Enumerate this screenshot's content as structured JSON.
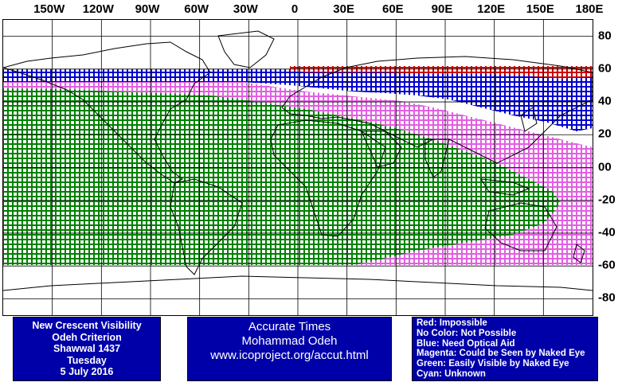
{
  "map": {
    "longitude_labels": [
      "150W",
      "120W",
      "90W",
      "60W",
      "30W",
      "0",
      "30E",
      "60E",
      "90E",
      "120E",
      "150E",
      "180E"
    ],
    "longitude_values": [
      -150,
      -120,
      -90,
      -60,
      -30,
      0,
      30,
      60,
      90,
      120,
      150,
      180
    ],
    "latitude_labels": [
      "80",
      "60",
      "40",
      "20",
      "00",
      "-20",
      "-40",
      "-60",
      "-80"
    ],
    "latitude_values": [
      80,
      60,
      40,
      20,
      0,
      -20,
      -40,
      -60,
      -80
    ],
    "lon_range": [
      -180,
      180
    ],
    "lat_range": [
      -90,
      90
    ],
    "grid": true,
    "zone_colors": {
      "impossible": "#cc0000",
      "need_optical_aid": "#0000cc",
      "naked_eye_possible": "#e060e0",
      "easily_visible": "#008000",
      "coastline": "#000000"
    },
    "visibility_zones": [
      {
        "zone": "impossible",
        "lat_range": [
          57,
          62
        ],
        "lon_range": [
          -20,
          180
        ]
      },
      {
        "zone": "need_optical_aid",
        "lat_range": [
          40,
          60
        ],
        "lon_range": [
          -180,
          180
        ]
      },
      {
        "zone": "naked_eye_possible",
        "lat_range": [
          -60,
          60
        ],
        "lon_range": [
          -180,
          180
        ]
      },
      {
        "zone": "easily_visible",
        "lat_range": [
          -60,
          55
        ],
        "lon_range": [
          -180,
          140
        ]
      }
    ]
  },
  "info": {
    "title": "New Crescent Visibility",
    "criterion": "Odeh Criterion",
    "month": "Shawwal 1437",
    "weekday": "Tuesday",
    "date": "5 July 2016"
  },
  "credits": {
    "line1": "Accurate Times",
    "line2": "Mohammad Odeh",
    "line3": "www.icoproject.org/accut.html"
  },
  "legend": {
    "red": "Red: Impossible",
    "no_color": "No Color: Not Possible",
    "blue": "Blue: Need Optical Aid",
    "magenta": "Magenta: Could be Seen by Naked Eye",
    "green": "Green: Easily Visible by Naked Eye",
    "cyan": "Cyan: Unknown"
  }
}
